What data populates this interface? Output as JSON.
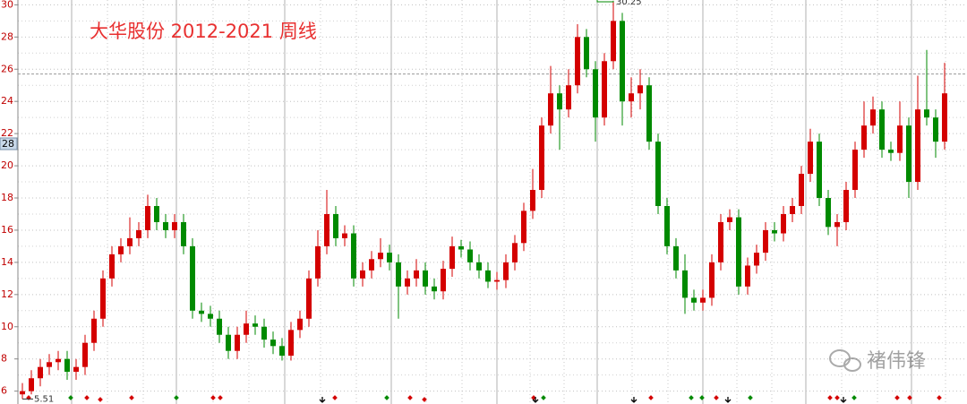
{
  "chart_data": {
    "type": "candlestick",
    "title": "大华股份 2012-2021 周线",
    "watermark": "褚伟锋",
    "cursor_label": "28",
    "crosshair_y": 25.7,
    "up_color": "#d40000",
    "down_color": "#008a00",
    "ylim": [
      5.2,
      30.3
    ],
    "yticks": [
      6,
      8,
      10,
      12,
      14,
      16,
      18,
      20,
      22,
      24,
      26,
      28,
      30
    ],
    "yticks_minor": [
      7,
      9,
      11,
      13,
      15,
      17,
      19,
      21,
      23,
      25,
      27,
      29
    ],
    "grid": true,
    "open": [
      5.8,
      6.0,
      6.8,
      7.5,
      7.8,
      8.0,
      7.2,
      7.5,
      9.0,
      10.5,
      13.0,
      14.5,
      15.0,
      15.5,
      16.0,
      17.5,
      16.5,
      16.0,
      16.5,
      15.0,
      11.0,
      10.8,
      10.5,
      9.5,
      8.5,
      9.5,
      10.2,
      10.0,
      9.2,
      8.8,
      8.2,
      9.8,
      10.5,
      13.0,
      15.0,
      17.0,
      15.5,
      15.8,
      13.0,
      13.5,
      14.2,
      14.6,
      14.0,
      12.5,
      13.0,
      13.5,
      12.5,
      12.2,
      13.6,
      15.0,
      14.8,
      14.0,
      13.5,
      12.8,
      12.9,
      14.0,
      15.2,
      17.2,
      18.5,
      22.5,
      24.5,
      23.5,
      25.0,
      28.0,
      26.0,
      23.0,
      26.5,
      29.0,
      24.0,
      24.5,
      25.0,
      21.5,
      17.5,
      15.0,
      13.5,
      11.8,
      11.5,
      11.8,
      14.0,
      16.5,
      16.8,
      12.5,
      13.8,
      14.6,
      16.0,
      15.8,
      17.0,
      17.5,
      19.5,
      21.5,
      18.0,
      16.2,
      16.5,
      18.5,
      21.0,
      22.5,
      23.5,
      21.0,
      20.8,
      22.5,
      19.0,
      23.5,
      23.0,
      21.5
    ],
    "high": [
      6.5,
      7.3,
      8.0,
      8.3,
      8.5,
      8.5,
      8.0,
      9.5,
      11.0,
      13.5,
      15.0,
      15.5,
      16.8,
      16.5,
      18.2,
      18.0,
      17.0,
      17.0,
      17.0,
      15.5,
      11.5,
      11.3,
      11.0,
      10.0,
      10.0,
      11.0,
      10.7,
      10.5,
      9.7,
      9.3,
      10.3,
      11.0,
      13.5,
      16.0,
      18.5,
      17.5,
      16.3,
      16.3,
      14.0,
      14.7,
      15.5,
      15.1,
      14.5,
      13.5,
      14.2,
      14.0,
      13.0,
      14.1,
      15.6,
      15.4,
      15.3,
      14.5,
      14.0,
      13.4,
      14.5,
      15.7,
      17.7,
      19.8,
      23.0,
      26.2,
      25.0,
      26.0,
      28.8,
      28.5,
      26.5,
      27.0,
      30.25,
      29.5,
      25.5,
      26.0,
      25.5,
      22.0,
      18.0,
      15.5,
      14.5,
      12.3,
      12.3,
      14.5,
      17.0,
      17.3,
      17.3,
      14.3,
      15.1,
      16.5,
      16.5,
      17.5,
      18.0,
      20.0,
      22.3,
      22.0,
      18.5,
      17.0,
      19.0,
      21.5,
      24.0,
      24.3,
      24.0,
      21.5,
      24.0,
      23.0,
      25.6,
      27.2,
      23.5,
      26.4
    ],
    "low": [
      5.51,
      5.8,
      6.3,
      7.0,
      7.3,
      6.7,
      6.7,
      7.0,
      8.5,
      10.0,
      12.5,
      14.0,
      14.5,
      15.0,
      15.5,
      16.0,
      15.5,
      15.5,
      14.5,
      10.5,
      10.3,
      10.0,
      9.0,
      8.0,
      8.0,
      9.0,
      9.5,
      8.7,
      8.3,
      7.9,
      7.9,
      9.3,
      10.0,
      12.5,
      14.5,
      15.0,
      15.0,
      12.5,
      12.5,
      13.0,
      13.7,
      13.5,
      10.5,
      12.0,
      12.5,
      12.0,
      11.7,
      11.7,
      13.1,
      14.3,
      13.5,
      13.0,
      12.4,
      12.3,
      12.4,
      13.5,
      14.7,
      16.7,
      18.0,
      22.0,
      21.0,
      23.0,
      24.5,
      25.5,
      21.5,
      22.5,
      26.0,
      22.5,
      23.0,
      23.5,
      21.0,
      17.0,
      14.5,
      13.0,
      10.8,
      11.0,
      11.0,
      11.3,
      13.5,
      16.0,
      12.0,
      12.0,
      13.3,
      14.1,
      15.3,
      15.3,
      16.5,
      17.0,
      19.0,
      17.5,
      15.7,
      15.0,
      16.0,
      18.0,
      20.5,
      22.0,
      20.5,
      20.3,
      20.3,
      18.0,
      18.5,
      22.5,
      20.5,
      21.0
    ],
    "close": [
      6.0,
      6.8,
      7.5,
      7.8,
      8.0,
      7.2,
      7.5,
      9.0,
      10.5,
      13.0,
      14.5,
      15.0,
      15.5,
      16.0,
      17.5,
      16.5,
      16.0,
      16.5,
      15.0,
      11.0,
      10.8,
      10.5,
      9.5,
      8.5,
      9.5,
      10.2,
      10.0,
      9.2,
      8.8,
      8.2,
      9.8,
      10.5,
      13.0,
      15.0,
      17.0,
      15.5,
      15.8,
      13.0,
      13.5,
      14.2,
      14.6,
      14.0,
      12.5,
      13.0,
      13.5,
      12.5,
      12.2,
      13.6,
      15.0,
      14.8,
      14.0,
      13.5,
      12.8,
      12.9,
      14.0,
      15.2,
      17.2,
      18.5,
      22.5,
      24.5,
      23.5,
      25.0,
      28.0,
      26.0,
      23.0,
      26.5,
      29.0,
      24.0,
      24.5,
      25.0,
      21.5,
      17.5,
      15.0,
      13.5,
      11.8,
      11.5,
      11.8,
      14.0,
      16.5,
      16.8,
      12.5,
      13.8,
      14.6,
      16.0,
      15.8,
      17.0,
      17.5,
      19.5,
      21.5,
      18.0,
      16.2,
      16.5,
      18.5,
      21.0,
      22.5,
      23.5,
      21.0,
      20.8,
      22.5,
      19.0,
      23.5,
      23.0,
      21.5,
      24.5
    ]
  }
}
